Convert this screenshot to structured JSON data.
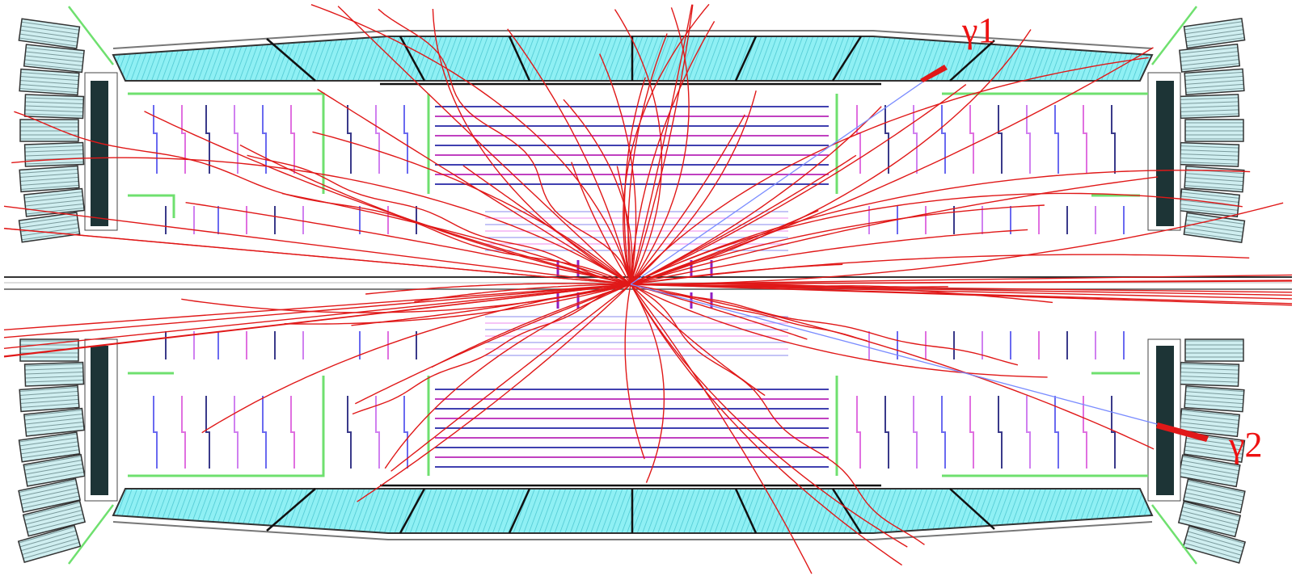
{
  "labels": {
    "gamma1": "γ1",
    "gamma2": "γ2"
  }
}
